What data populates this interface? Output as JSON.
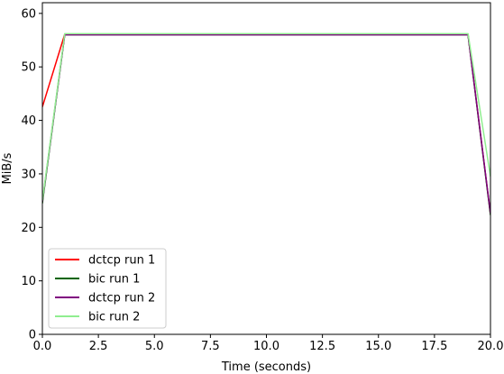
{
  "chart_data": {
    "type": "line",
    "title": "",
    "xlabel": "Time (seconds)",
    "ylabel": "MiB/s",
    "xlim": [
      0,
      20
    ],
    "ylim": [
      0,
      62
    ],
    "xticks": [
      0,
      2.5,
      5,
      7.5,
      10,
      12.5,
      15,
      17.5,
      20
    ],
    "xtick_labels": [
      "0.0",
      "2.5",
      "5.0",
      "7.5",
      "10.0",
      "12.5",
      "15.0",
      "17.5",
      "20.0"
    ],
    "yticks": [
      0,
      10,
      20,
      30,
      40,
      50,
      60
    ],
    "ytick_labels": [
      "0",
      "10",
      "20",
      "30",
      "40",
      "50",
      "60"
    ],
    "grid": false,
    "legend_position": "lower-left",
    "series": [
      {
        "name": "dctcp run 1",
        "color": "#ff0000",
        "x": [
          0,
          1,
          2,
          3,
          4,
          5,
          6,
          7,
          8,
          9,
          10,
          11,
          12,
          13,
          14,
          15,
          16,
          17,
          18,
          19,
          20
        ],
        "y": [
          42.5,
          56.1,
          56.1,
          56.1,
          56.1,
          56.1,
          56.1,
          56.1,
          56.1,
          56.1,
          56.1,
          56.1,
          56.1,
          56.1,
          56.1,
          56.1,
          56.1,
          56.1,
          56.1,
          56.1,
          22.5
        ]
      },
      {
        "name": "bic run 1",
        "color": "#006400",
        "x": [
          0,
          1,
          2,
          3,
          4,
          5,
          6,
          7,
          8,
          9,
          10,
          11,
          12,
          13,
          14,
          15,
          16,
          17,
          18,
          19,
          20
        ],
        "y": [
          24.5,
          56.0,
          56.0,
          56.0,
          56.0,
          56.0,
          56.0,
          56.0,
          56.0,
          56.0,
          56.0,
          56.0,
          56.0,
          56.0,
          56.0,
          56.0,
          56.0,
          56.0,
          56.0,
          56.0,
          22.3
        ]
      },
      {
        "name": "dctcp run 2",
        "color": "#800080",
        "x": [
          0,
          1,
          2,
          3,
          4,
          5,
          6,
          7,
          8,
          9,
          10,
          11,
          12,
          13,
          14,
          15,
          16,
          17,
          18,
          19,
          20
        ],
        "y": [
          24.8,
          56.0,
          56.0,
          56.0,
          56.0,
          56.0,
          56.0,
          56.0,
          56.0,
          56.0,
          56.0,
          56.0,
          56.0,
          56.0,
          56.0,
          56.0,
          56.0,
          56.0,
          56.0,
          56.0,
          22.6
        ]
      },
      {
        "name": "bic run 2",
        "color": "#90ee90",
        "x": [
          0,
          1,
          2,
          3,
          4,
          5,
          6,
          7,
          8,
          9,
          10,
          11,
          12,
          13,
          14,
          15,
          16,
          17,
          18,
          19,
          20
        ],
        "y": [
          25.0,
          56.2,
          56.2,
          56.2,
          56.2,
          56.2,
          56.2,
          56.2,
          56.2,
          56.2,
          56.2,
          56.2,
          56.2,
          56.2,
          56.2,
          56.2,
          56.2,
          56.2,
          56.2,
          56.2,
          29.5
        ]
      }
    ]
  }
}
